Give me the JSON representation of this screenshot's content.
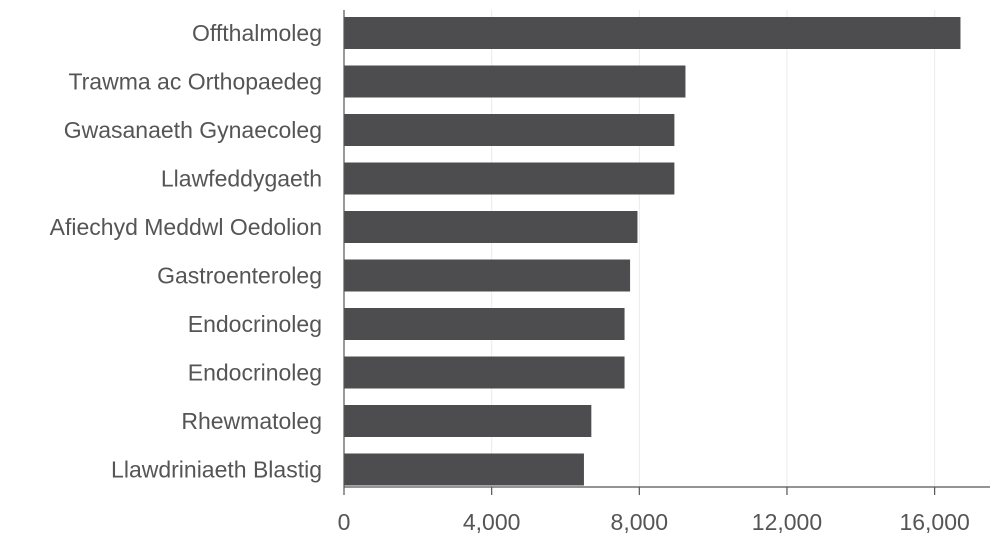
{
  "chart_data": {
    "type": "bar",
    "orientation": "horizontal",
    "categories": [
      "Offthalmoleg",
      "Trawma ac Orthopaedeg",
      "Gwasanaeth Gynaecoleg",
      "Llawfeddygaeth",
      "Afiechyd Meddwl Oedolion",
      "Gastroenteroleg",
      "Endocrinoleg",
      "Endocrinoleg",
      "Rhewmatoleg",
      "Llawdriniaeth Blastig"
    ],
    "values": [
      16700,
      9250,
      8950,
      8950,
      7950,
      7750,
      7600,
      7600,
      6700,
      6500
    ],
    "xlim": [
      0,
      17500
    ],
    "xticks": [
      0,
      4000,
      8000,
      12000,
      16000
    ],
    "tick_labels": [
      "0",
      "4,000",
      "8,000",
      "12,000",
      "16,000"
    ],
    "title": "",
    "xlabel": "",
    "ylabel": "",
    "grid": true,
    "bar_color": "#4d4d4f",
    "grid_color": "#ebebeb",
    "text_color": "#555555"
  }
}
